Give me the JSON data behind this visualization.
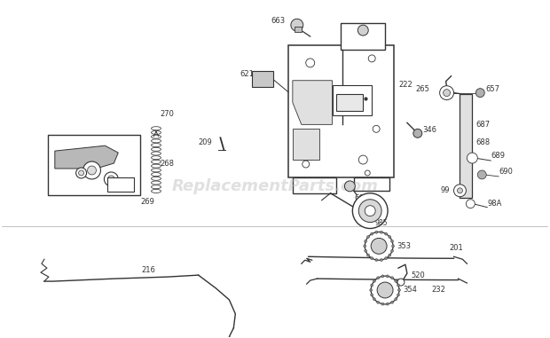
{
  "bg_color": "#ffffff",
  "figsize": [
    6.2,
    3.81
  ],
  "dpi": 100,
  "watermark": "ReplacementParts.com",
  "watermark_color": "#bbbbbb",
  "watermark_alpha": 0.45,
  "gray": "#333333",
  "label_fs": 6.0
}
